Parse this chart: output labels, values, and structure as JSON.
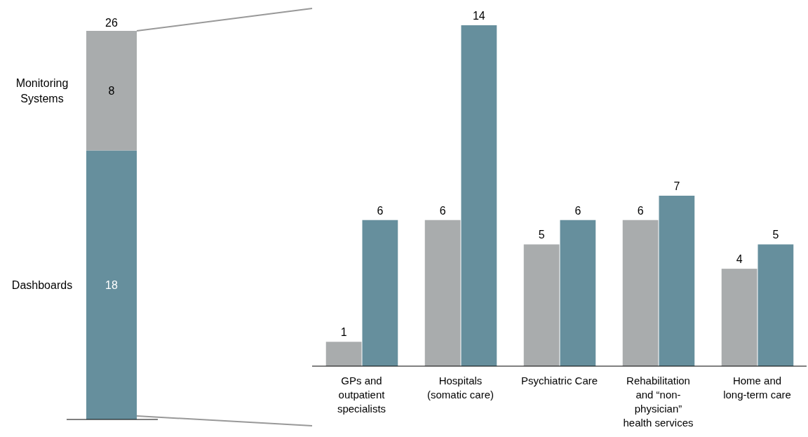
{
  "chart_data": [
    {
      "type": "bar",
      "stacked": true,
      "categories": [
        null
      ],
      "data_labels": true,
      "totals": [
        "26"
      ],
      "series": [
        {
          "name": "Dashboards",
          "color": "#668f9d",
          "values": [
            18
          ]
        },
        {
          "name": "Monitoring Systems",
          "color": "#a9acad",
          "values": [
            8
          ]
        }
      ]
    },
    {
      "type": "bar",
      "categories": [
        "GPs and outpatient specialists",
        "Hospitals (somatic care)",
        "Psychiatric Care",
        "Rehabilitation and “non-physician” health services",
        "Home and long-term care"
      ],
      "data_labels": true,
      "series": [
        {
          "color": "#a9acad",
          "values": [
            1,
            6,
            5,
            6,
            4
          ]
        },
        {
          "color": "#668f9d",
          "values": [
            6,
            14,
            6,
            7,
            5
          ]
        }
      ]
    }
  ]
}
